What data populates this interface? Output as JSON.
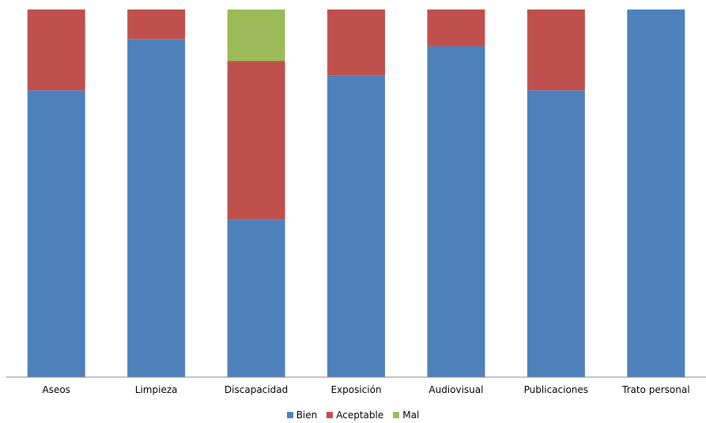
{
  "chart_data": {
    "type": "bar",
    "stacked": true,
    "percent_stacked": true,
    "categories": [
      "Aseos",
      "Limpieza",
      "Discapacidad",
      "Exposición",
      "Audiovisual",
      "Publicaciones",
      "Trato personal"
    ],
    "series": [
      {
        "name": "Bien",
        "color": "#4F81BD",
        "values": [
          78,
          92,
          43,
          82,
          90,
          78,
          100
        ]
      },
      {
        "name": "Aceptable",
        "color": "#C0504D",
        "values": [
          22,
          8,
          43,
          18,
          10,
          22,
          0
        ]
      },
      {
        "name": "Mal",
        "color": "#9BBB59",
        "values": [
          0,
          0,
          14,
          0,
          0,
          0,
          0
        ]
      }
    ],
    "ylim": [
      0,
      100
    ],
    "grid": false,
    "legend_position": "bottom"
  }
}
